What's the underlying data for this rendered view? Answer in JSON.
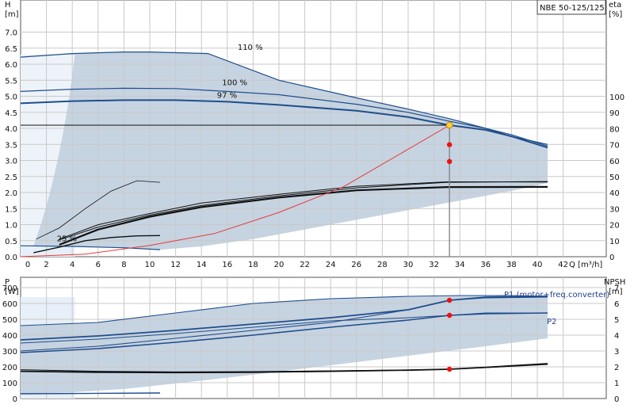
{
  "model": "NBE 50-125/125",
  "chart_data": [
    {
      "type": "line",
      "name": "head-efficiency",
      "y_axis_title": "H",
      "y_axis_unit": "[m]",
      "y2_axis_title": "eta",
      "y2_axis_unit": "[%]",
      "x_axis_label": "Q [m³/h]",
      "x_ticks": [
        "2",
        "4",
        "6",
        "8",
        "10",
        "12",
        "14",
        "16",
        "18",
        "20",
        "22",
        "24",
        "26",
        "28",
        "30",
        "32",
        "34",
        "36",
        "38",
        "40",
        "42"
      ],
      "x_zero": "0",
      "y_ticks": [
        "0.0",
        "0.5",
        "1.0",
        "1.5",
        "2.0",
        "2.5",
        "3.0",
        "3.5",
        "4.0",
        "4.5",
        "5.0",
        "5.5",
        "6.0",
        "6.5",
        "7.0"
      ],
      "y2_ticks": [
        "0",
        "10",
        "20",
        "30",
        "40",
        "50",
        "60",
        "70",
        "80",
        "90",
        "100"
      ],
      "xlim": [
        0,
        43.5
      ],
      "ylim": [
        0,
        7.5
      ],
      "y2lim": [
        0,
        100
      ],
      "curve_labels": [
        "110 %",
        "100 %",
        "97 %",
        "25 %"
      ],
      "duty_point": {
        "q": 33.2,
        "h": 4.1,
        "eta_top": 70,
        "eta_mid": 59.5
      },
      "head_curves": [
        {
          "speed": "110 %",
          "points": [
            [
              0,
              6.22
            ],
            [
              4,
              6.33
            ],
            [
              8,
              6.38
            ],
            [
              10,
              6.38
            ],
            [
              14.5,
              6.33
            ],
            [
              20,
              5.5
            ],
            [
              26,
              4.95
            ],
            [
              30,
              4.6
            ],
            [
              33.2,
              4.3
            ],
            [
              36,
              4.0
            ],
            [
              38,
              3.75
            ],
            [
              40.8,
              3.5
            ]
          ]
        },
        {
          "speed": "100 %",
          "points": [
            [
              0,
              5.15
            ],
            [
              4,
              5.22
            ],
            [
              8,
              5.25
            ],
            [
              12,
              5.24
            ],
            [
              16,
              5.15
            ],
            [
              20,
              5.05
            ],
            [
              26,
              4.75
            ],
            [
              30,
              4.5
            ],
            [
              33.2,
              4.22
            ],
            [
              36,
              4.0
            ],
            [
              38,
              3.8
            ],
            [
              40.8,
              3.45
            ]
          ]
        },
        {
          "speed": "97 %",
          "points": [
            [
              0,
              4.78
            ],
            [
              4,
              4.85
            ],
            [
              8,
              4.88
            ],
            [
              12,
              4.88
            ],
            [
              16,
              4.83
            ],
            [
              20,
              4.73
            ],
            [
              26,
              4.55
            ],
            [
              30,
              4.35
            ],
            [
              33.2,
              4.1
            ],
            [
              36,
              3.95
            ],
            [
              38,
              3.75
            ],
            [
              40.8,
              3.4
            ]
          ]
        },
        {
          "speed": "25 %",
          "points": [
            [
              0,
              0.34
            ],
            [
              4,
              0.32
            ],
            [
              8,
              0.28
            ],
            [
              10.8,
              0.22
            ]
          ]
        }
      ],
      "system_curve": [
        [
          0,
          0
        ],
        [
          5,
          0.08
        ],
        [
          10,
          0.35
        ],
        [
          15,
          0.72
        ],
        [
          20,
          1.38
        ],
        [
          25,
          2.18
        ],
        [
          30,
          3.35
        ],
        [
          33.2,
          4.1
        ]
      ],
      "efficiency_curves": [
        {
          "points": [
            [
              3,
              7.5
            ],
            [
              6,
              17
            ],
            [
              10,
              25
            ],
            [
              14,
              31
            ],
            [
              20,
              37
            ],
            [
              26,
              41.5
            ],
            [
              33,
              43.5
            ],
            [
              40.8,
              43.6
            ]
          ]
        },
        {
          "points": [
            [
              3,
              10.5
            ],
            [
              6,
              18.5
            ],
            [
              10,
              26
            ],
            [
              14,
              32
            ],
            [
              20,
              38
            ],
            [
              26,
              43
            ],
            [
              33,
              46.5
            ],
            [
              40.8,
              47
            ]
          ]
        },
        {
          "points": [
            [
              3,
              11
            ],
            [
              6,
              20
            ],
            [
              10,
              27
            ],
            [
              14,
              33.5
            ],
            [
              20,
              39
            ],
            [
              26,
              44
            ],
            [
              33,
              46.8
            ],
            [
              40.8,
              46.7
            ]
          ]
        }
      ],
      "efficiency_curve_25": [
        [
          1.2,
          11
        ],
        [
          3,
          18
        ],
        [
          5,
          30
        ],
        [
          7,
          41
        ],
        [
          9,
          47.5
        ],
        [
          10.8,
          46.5
        ]
      ],
      "efficiency_curve_low": [
        [
          1,
          2.5
        ],
        [
          3,
          6
        ],
        [
          5,
          10
        ],
        [
          7,
          12
        ],
        [
          9,
          13
        ],
        [
          10.8,
          13.2
        ]
      ],
      "operating_area": {
        "upper": [
          [
            0,
            6.22
          ],
          [
            4,
            6.33
          ],
          [
            8,
            6.38
          ],
          [
            10,
            6.38
          ],
          [
            14.5,
            6.33
          ],
          [
            20,
            5.5
          ],
          [
            26,
            4.95
          ],
          [
            30,
            4.6
          ],
          [
            33.2,
            4.3
          ],
          [
            36,
            4.0
          ],
          [
            38,
            3.75
          ],
          [
            40.8,
            3.5
          ]
        ],
        "lower": [
          [
            40.8,
            2.3
          ],
          [
            38,
            2.05
          ],
          [
            34,
            1.75
          ],
          [
            30,
            1.45
          ],
          [
            26,
            1.15
          ],
          [
            22,
            0.85
          ],
          [
            18,
            0.55
          ],
          [
            14,
            0.32
          ],
          [
            10.8,
            0.22
          ],
          [
            8,
            0.28
          ],
          [
            4,
            0.32
          ],
          [
            0,
            0.34
          ]
        ]
      }
    },
    {
      "type": "line",
      "name": "power-npsh",
      "y_axis_title": "P",
      "y_axis_unit": "[W]",
      "y2_axis_title": "NPSH",
      "y2_axis_unit": "[m]",
      "y_ticks": [
        "0",
        "100",
        "200",
        "300",
        "400",
        "500",
        "600",
        "700"
      ],
      "y2_ticks": [
        "0",
        "1",
        "2",
        "3",
        "4",
        "5",
        "6",
        "7"
      ],
      "xlim": [
        0,
        43.5
      ],
      "ylim": [
        0,
        700
      ],
      "y2lim": [
        0,
        7
      ],
      "series_labels": [
        "P1 (motor+freq.converter)",
        "P2"
      ],
      "duty_points": [
        {
          "q": 33.2,
          "p": 620
        },
        {
          "q": 33.2,
          "p": 525
        },
        {
          "q": 33.2,
          "npsh": 1.85
        }
      ],
      "p1_curves": [
        {
          "points": [
            [
              0,
              460
            ],
            [
              6,
              480
            ],
            [
              12,
              540
            ],
            [
              18,
              600
            ],
            [
              24,
              630
            ],
            [
              30,
              645
            ],
            [
              34,
              650
            ],
            [
              38,
              650
            ],
            [
              40.8,
              645
            ]
          ]
        },
        {
          "points": [
            [
              0,
              370
            ],
            [
              6,
              395
            ],
            [
              12,
              430
            ],
            [
              18,
              470
            ],
            [
              24,
              510
            ],
            [
              30,
              560
            ],
            [
              33.2,
              620
            ],
            [
              36,
              640
            ],
            [
              40.8,
              645
            ]
          ]
        },
        {
          "points": [
            [
              0,
              300
            ],
            [
              6,
              330
            ],
            [
              12,
              380
            ],
            [
              18,
              430
            ],
            [
              24,
              480
            ],
            [
              30,
              560
            ],
            [
              33.2,
              620
            ],
            [
              36,
              635
            ],
            [
              40.8,
              640
            ]
          ]
        }
      ],
      "p2_curves": [
        {
          "points": [
            [
              0,
              350
            ],
            [
              6,
              375
            ],
            [
              12,
              410
            ],
            [
              18,
              450
            ],
            [
              24,
              490
            ],
            [
              30,
              510
            ],
            [
              33.2,
              525
            ],
            [
              36,
              540
            ],
            [
              40.8,
              540
            ]
          ]
        },
        {
          "points": [
            [
              0,
              290
            ],
            [
              6,
              315
            ],
            [
              12,
              355
            ],
            [
              18,
              400
            ],
            [
              24,
              450
            ],
            [
              30,
              495
            ],
            [
              33.2,
              525
            ],
            [
              36,
              535
            ],
            [
              40.8,
              540
            ]
          ]
        }
      ],
      "npsh_curves": [
        {
          "points": [
            [
              0,
              1.82
            ],
            [
              6,
              1.72
            ],
            [
              12,
              1.68
            ],
            [
              18,
              1.7
            ],
            [
              24,
              1.75
            ],
            [
              30,
              1.8
            ],
            [
              33.2,
              1.85
            ],
            [
              36,
              1.95
            ],
            [
              40.8,
              2.15
            ]
          ]
        },
        {
          "points": [
            [
              0,
              1.72
            ],
            [
              6,
              1.66
            ],
            [
              12,
              1.64
            ],
            [
              18,
              1.66
            ],
            [
              24,
              1.72
            ],
            [
              30,
              1.79
            ],
            [
              33.2,
              1.85
            ],
            [
              36,
              1.97
            ],
            [
              40.8,
              2.2
            ]
          ]
        }
      ],
      "low_speed_power": [
        [
          0,
          30
        ],
        [
          5,
          32
        ],
        [
          10.8,
          35
        ]
      ],
      "operating_area": {
        "upper": [
          [
            0,
            460
          ],
          [
            6,
            480
          ],
          [
            12,
            540
          ],
          [
            18,
            600
          ],
          [
            24,
            630
          ],
          [
            30,
            645
          ],
          [
            34,
            650
          ],
          [
            38,
            650
          ],
          [
            40.8,
            645
          ]
        ],
        "lower": [
          [
            40.8,
            380
          ],
          [
            36,
            330
          ],
          [
            30,
            270
          ],
          [
            24,
            210
          ],
          [
            18,
            150
          ],
          [
            12,
            95
          ],
          [
            8,
            60
          ],
          [
            4,
            40
          ],
          [
            0,
            30
          ]
        ]
      }
    }
  ]
}
